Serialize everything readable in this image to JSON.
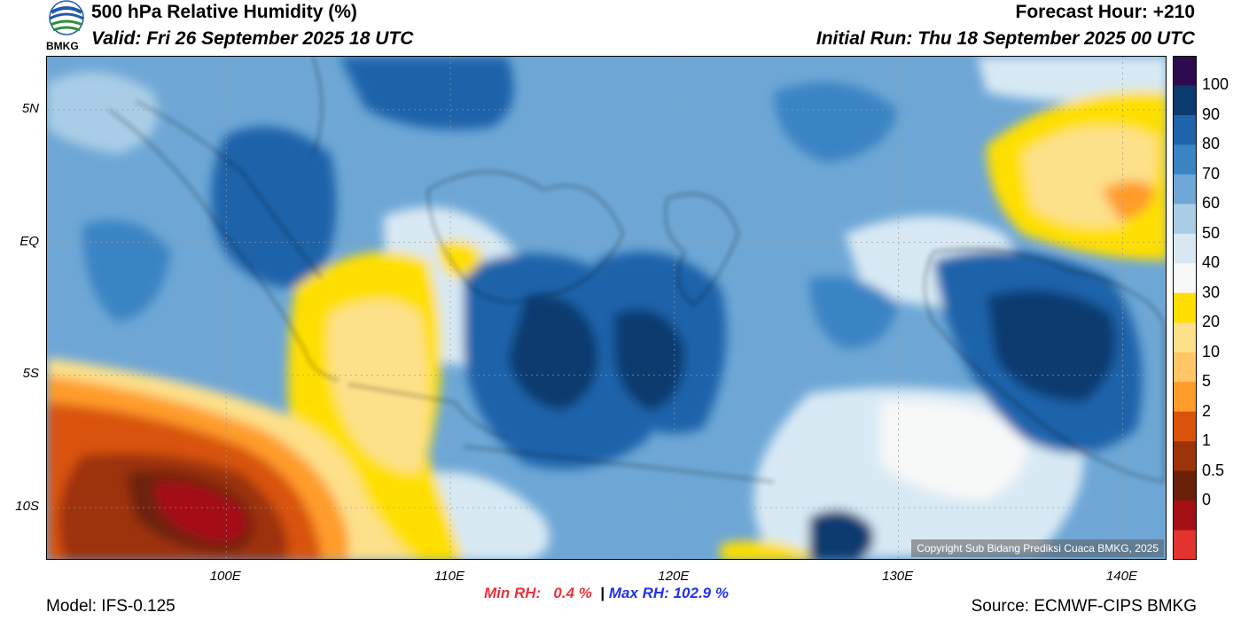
{
  "header": {
    "title": "500 hPa Relative Humidity (%)",
    "valid": "Valid: Fri 26 September 2025 18 UTC",
    "forecast_hour": "Forecast Hour: +210",
    "initial_run": "Initial Run: Thu 18 September 2025 00 UTC",
    "logo_text": "BMKG"
  },
  "axes": {
    "y_ticks": [
      {
        "label": "5N",
        "lat": 5
      },
      {
        "label": "EQ",
        "lat": 0
      },
      {
        "label": "5S",
        "lat": -5
      },
      {
        "label": "10S",
        "lat": -10
      }
    ],
    "x_ticks": [
      {
        "label": "100E",
        "lon": 100
      },
      {
        "label": "110E",
        "lon": 110
      },
      {
        "label": "120E",
        "lon": 120
      },
      {
        "label": "130E",
        "lon": 130
      },
      {
        "label": "140E",
        "lon": 140
      }
    ],
    "lon_range": [
      92,
      142
    ],
    "lat_range": [
      -12,
      7
    ]
  },
  "colorbar": {
    "labels": [
      "100",
      "90",
      "80",
      "70",
      "60",
      "50",
      "40",
      "30",
      "20",
      "10",
      "5",
      "2",
      "1",
      "0.5",
      "0"
    ],
    "colors": [
      "#2d0b4e",
      "#0b3a6f",
      "#1f63aa",
      "#3b84c4",
      "#6ea7d6",
      "#a9cde6",
      "#d8e9f4",
      "#f7f8f8",
      "#ffdf00",
      "#fde08a",
      "#ffc566",
      "#ff9c2a",
      "#d9530a",
      "#9d3308",
      "#6b2008",
      "#a51016",
      "#e2332f"
    ]
  },
  "copyright": "Copyright Sub Bidang Prediksi Cuaca BMKG, 2025",
  "stats": {
    "min_label": "Min RH:",
    "min_value": "0.4 %",
    "separator": "|",
    "max_label": "Max RH:",
    "max_value": "102.9 %"
  },
  "footer": {
    "model": "Model: IFS-0.125",
    "source": "Source: ECMWF-CIPS BMKG"
  }
}
